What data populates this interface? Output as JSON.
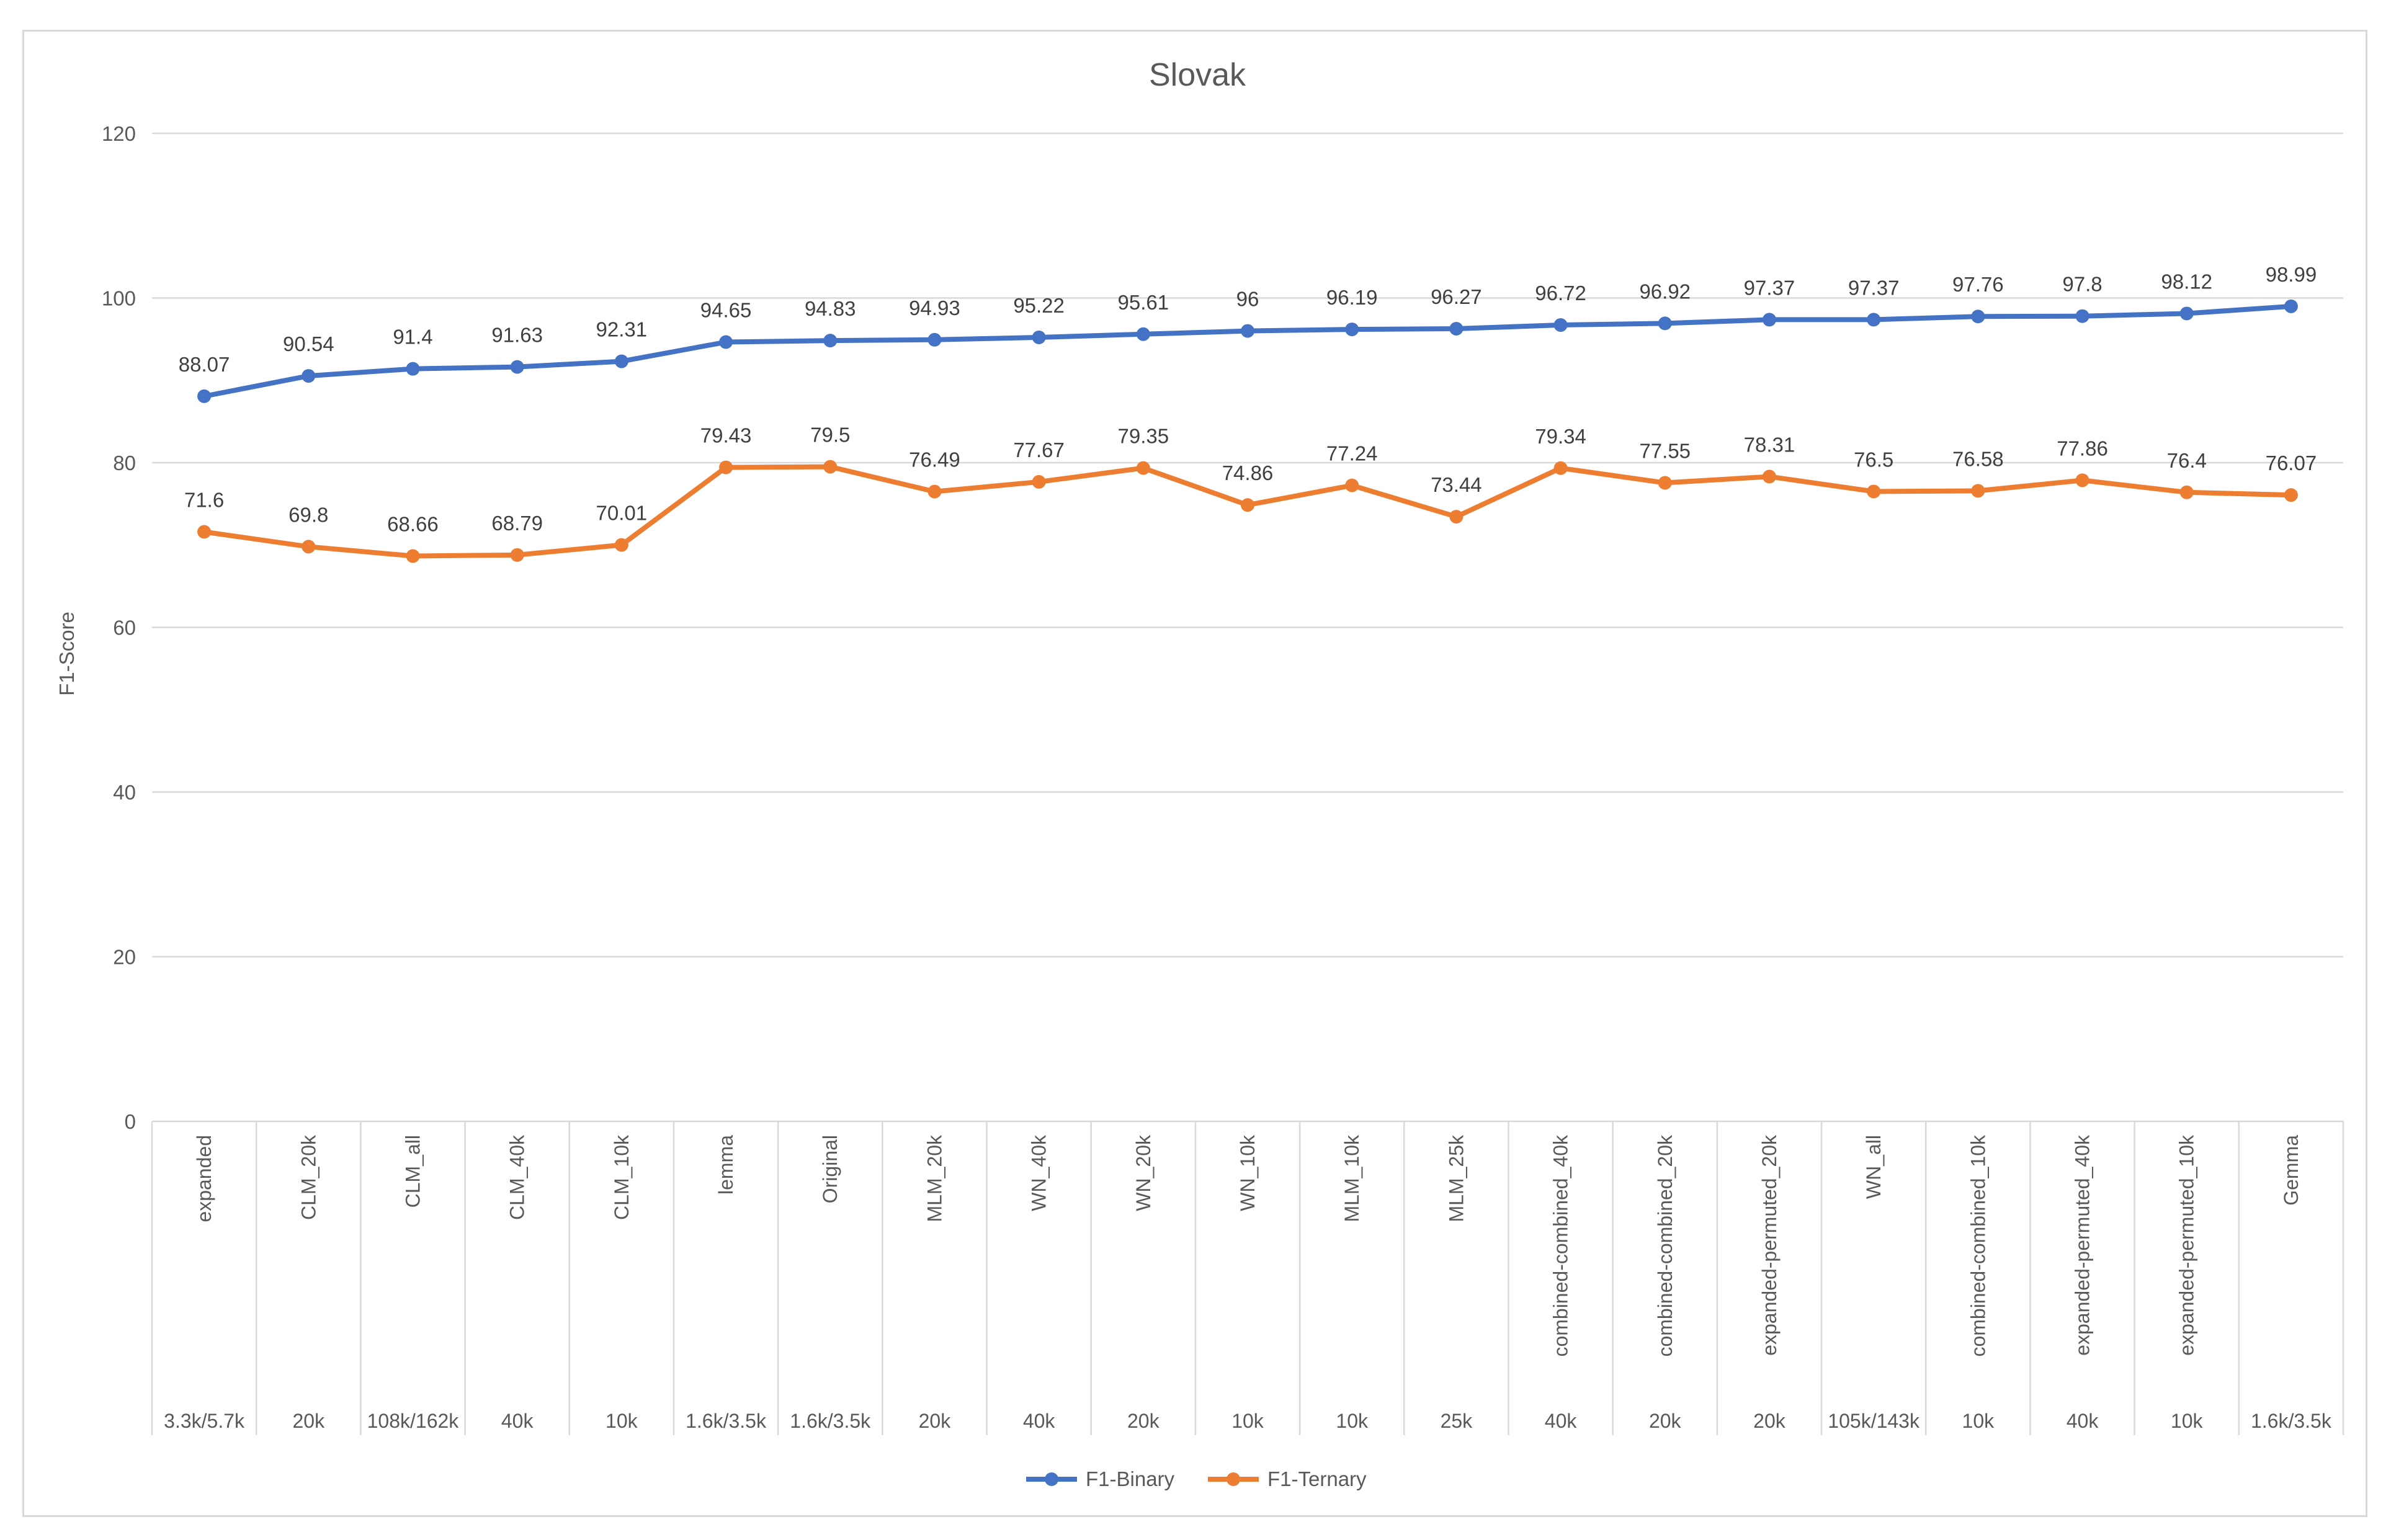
{
  "chart_data": {
    "type": "line",
    "title": "Slovak",
    "xlabel": "",
    "ylabel": "F1-Score",
    "ylim": [
      0,
      120
    ],
    "yticks": [
      0,
      20,
      40,
      60,
      80,
      100,
      120
    ],
    "grid": true,
    "legend_position": "bottom-center",
    "categories": [
      "expanded",
      "CLM_20k",
      "CLM_all",
      "CLM_40k",
      "CLM_10k",
      "lemma",
      "Original",
      "MLM_20k",
      "WN_40k",
      "WN_20k",
      "WN_10k",
      "MLM_10k",
      "MLM_25k",
      "combined-combined_40k",
      "combined-combined_20k",
      "expanded-permuted_20k",
      "WN_all",
      "combined-combined_10k",
      "expanded-permuted_40k",
      "expanded-permuted_10k",
      "Gemma"
    ],
    "sizes": [
      "3.3k/5.7k",
      "20k",
      "108k/162k",
      "40k",
      "10k",
      "1.6k/3.5k",
      "1.6k/3.5k",
      "20k",
      "40k",
      "20k",
      "10k",
      "10k",
      "25k",
      "40k",
      "20k",
      "20k",
      "105k/143k",
      "10k",
      "40k",
      "10k",
      "1.6k/3.5k"
    ],
    "series": [
      {
        "name": "F1-Binary",
        "color": "#4472c4",
        "values": [
          88.07,
          90.54,
          91.4,
          91.63,
          92.31,
          94.65,
          94.83,
          94.93,
          95.22,
          95.61,
          96,
          96.19,
          96.27,
          96.72,
          96.92,
          97.37,
          97.37,
          97.76,
          97.8,
          98.12,
          98.99
        ],
        "labels": [
          "88.07",
          "90.54",
          "91.4",
          "91.63",
          "92.31",
          "94.65",
          "94.83",
          "94.93",
          "95.22",
          "95.61",
          "96",
          "96.19",
          "96.27",
          "96.72",
          "96.92",
          "97.37",
          "97.37",
          "97.76",
          "97.8",
          "98.12",
          "98.99"
        ]
      },
      {
        "name": "F1-Ternary",
        "color": "#ed7d31",
        "values": [
          71.6,
          69.8,
          68.66,
          68.79,
          70.01,
          79.43,
          79.5,
          76.49,
          77.67,
          79.35,
          74.86,
          77.24,
          73.44,
          79.34,
          77.55,
          78.31,
          76.5,
          76.58,
          77.86,
          76.4,
          76.07
        ],
        "labels": [
          "71.6",
          "69.8",
          "68.66",
          "68.79",
          "70.01",
          "79.43",
          "79.5",
          "76.49",
          "77.67",
          "79.35",
          "74.86",
          "77.24",
          "73.44",
          "79.34",
          "77.55",
          "78.31",
          "76.5",
          "76.58",
          "77.86",
          "76.4",
          "76.07"
        ]
      }
    ]
  }
}
